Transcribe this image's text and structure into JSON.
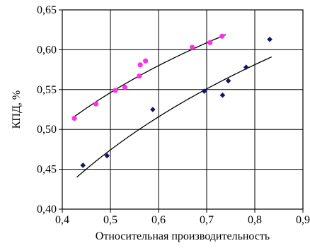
{
  "chart_data": {
    "type": "scatter",
    "title": "",
    "xlabel": "Относительная производительность",
    "ylabel": "КПД, %",
    "xlim": [
      0.4,
      0.9
    ],
    "ylim": [
      0.4,
      0.65
    ],
    "grid": true,
    "legend": "none",
    "x_ticks": [
      "0,4",
      "0,5",
      "0,6",
      "0,7",
      "0,8",
      "0,9"
    ],
    "x_tick_values": [
      0.4,
      0.5,
      0.6,
      0.7,
      0.8,
      0.9
    ],
    "y_ticks": [
      "0,40",
      "0,45",
      "0,50",
      "0,55",
      "0,60",
      "0,65"
    ],
    "y_tick_values": [
      0.4,
      0.45,
      0.5,
      0.55,
      0.6,
      0.65
    ],
    "series": [
      {
        "color": "#ff2fe6",
        "marker": "circle",
        "points": [
          [
            0.425,
            0.514
          ],
          [
            0.47,
            0.532
          ],
          [
            0.51,
            0.549
          ],
          [
            0.53,
            0.553
          ],
          [
            0.56,
            0.567
          ],
          [
            0.562,
            0.581
          ],
          [
            0.573,
            0.586
          ],
          [
            0.67,
            0.603
          ],
          [
            0.707,
            0.609
          ],
          [
            0.732,
            0.617
          ]
        ]
      },
      {
        "color": "#13136b",
        "marker": "diamond",
        "points": [
          [
            0.443,
            0.455
          ],
          [
            0.493,
            0.467
          ],
          [
            0.588,
            0.525
          ],
          [
            0.695,
            0.548
          ],
          [
            0.733,
            0.543
          ],
          [
            0.745,
            0.561
          ],
          [
            0.782,
            0.578
          ],
          [
            0.831,
            0.613
          ]
        ]
      }
    ],
    "trendlines": [
      {
        "x": [
          0.425,
          0.74
        ],
        "y": [
          0.516,
          0.619
        ]
      },
      {
        "x": [
          0.43,
          0.835
        ],
        "y": [
          0.44,
          0.591
        ]
      }
    ]
  }
}
